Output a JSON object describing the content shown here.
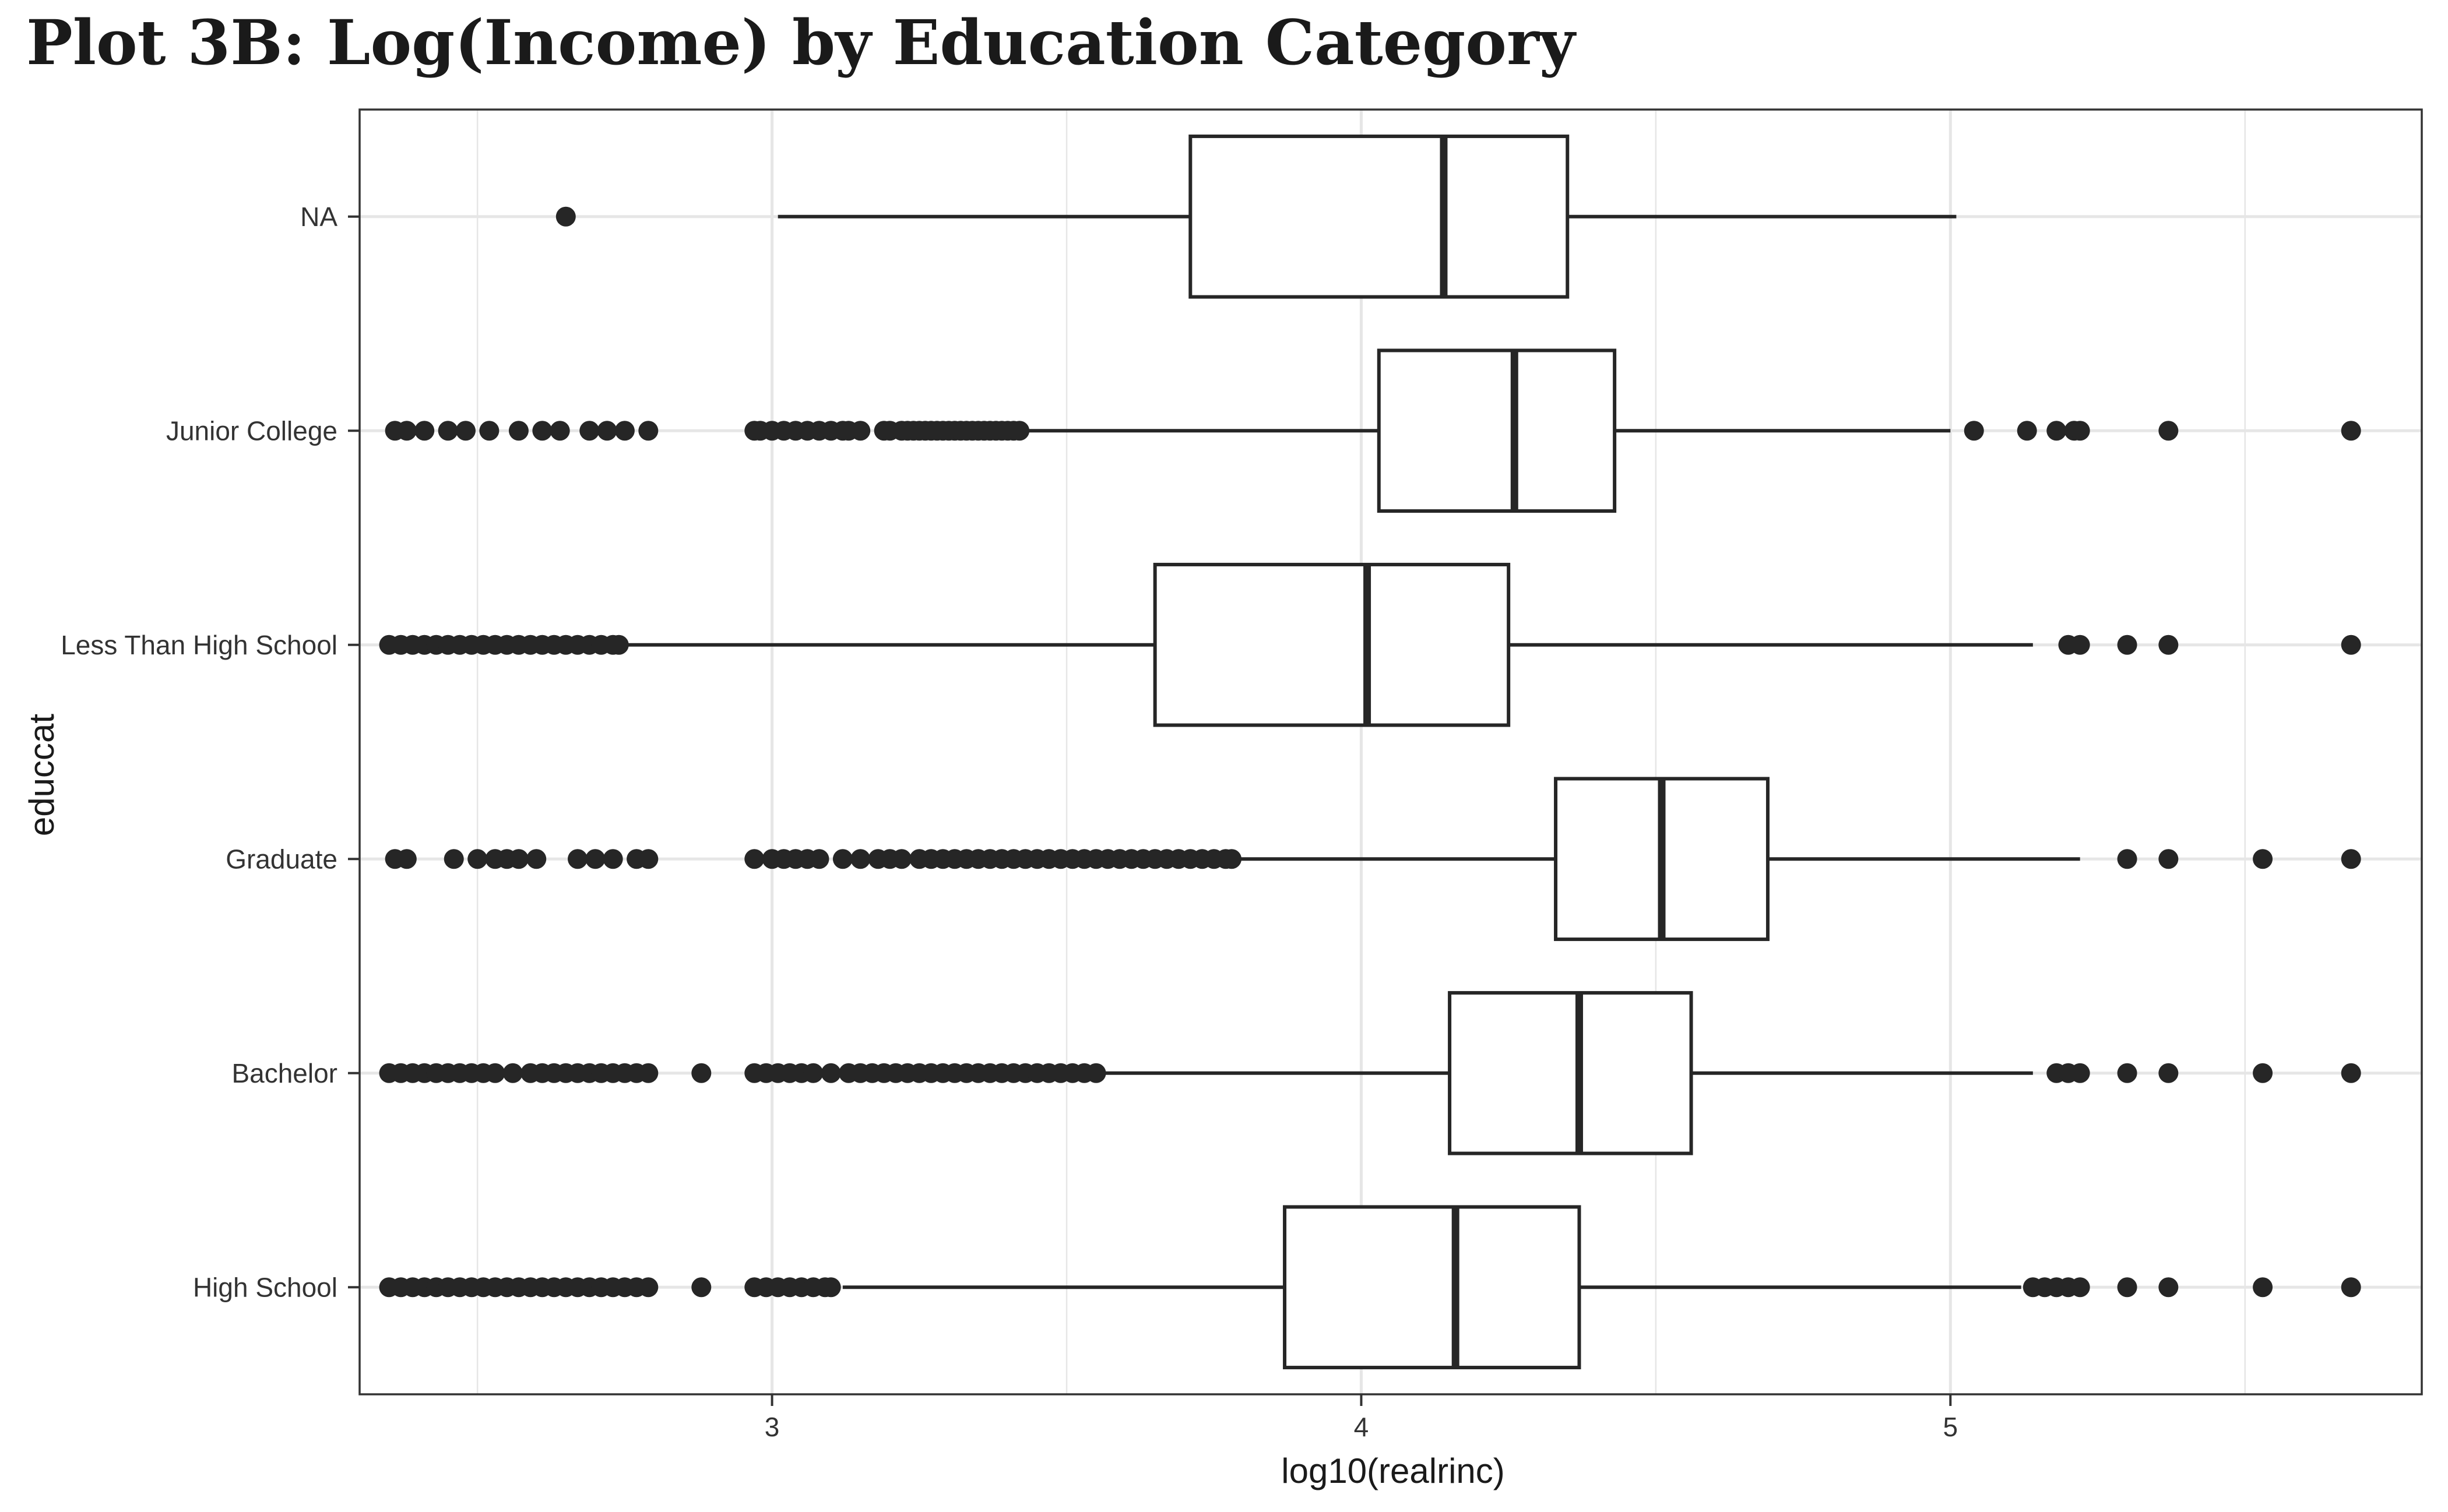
{
  "chart_data": {
    "type": "boxplot",
    "orientation": "horizontal",
    "title": "Plot 3B: Log(Income) by Education Category",
    "xlabel": "log10(realrinc)",
    "ylabel": "educcat",
    "xlim": [
      2.3,
      5.8
    ],
    "x_ticks": [
      3,
      4,
      5
    ],
    "grid": true,
    "colors": {
      "box_stroke": "#262626",
      "box_fill": "#ffffff",
      "outlier": "#262626",
      "grid": "#e6e6e6",
      "panel_border": "#333333"
    },
    "categories": [
      "NA",
      "Junior College",
      "Less Than High School",
      "Graduate",
      "Bachelor",
      "High School"
    ],
    "series": [
      {
        "category": "NA",
        "whisker_low": 3.01,
        "q1": 3.71,
        "median": 4.14,
        "q3": 4.35,
        "whisker_high": 5.01,
        "outliers": [
          2.65
        ]
      },
      {
        "category": "Junior College",
        "whisker_low": 3.43,
        "q1": 4.03,
        "median": 4.26,
        "q3": 4.43,
        "whisker_high": 5.0,
        "outliers": [
          2.36,
          2.38,
          2.41,
          2.45,
          2.48,
          2.52,
          2.57,
          2.61,
          2.64,
          2.69,
          2.72,
          2.75,
          2.79,
          2.97,
          2.98,
          3.0,
          3.02,
          3.04,
          3.06,
          3.08,
          3.1,
          3.12,
          3.13,
          3.15,
          3.19,
          3.2,
          3.22,
          3.23,
          3.24,
          3.25,
          3.26,
          3.27,
          3.28,
          3.29,
          3.3,
          3.31,
          3.32,
          3.33,
          3.34,
          3.35,
          3.36,
          3.37,
          3.38,
          3.39,
          3.4,
          3.41,
          3.42,
          5.04,
          5.13,
          5.18,
          5.21,
          5.22,
          5.37,
          5.68
        ]
      },
      {
        "category": "Less Than High School",
        "whisker_low": 2.75,
        "q1": 3.65,
        "median": 4.01,
        "q3": 4.25,
        "whisker_high": 5.14,
        "outliers": [
          2.35,
          2.37,
          2.39,
          2.41,
          2.43,
          2.45,
          2.47,
          2.49,
          2.51,
          2.53,
          2.55,
          2.57,
          2.59,
          2.61,
          2.63,
          2.65,
          2.67,
          2.69,
          2.71,
          2.73,
          2.74,
          5.2,
          5.22,
          5.3,
          5.37,
          5.68
        ]
      },
      {
        "category": "Graduate",
        "whisker_low": 3.79,
        "q1": 4.33,
        "median": 4.51,
        "q3": 4.69,
        "whisker_high": 5.22,
        "outliers": [
          2.36,
          2.38,
          2.46,
          2.5,
          2.53,
          2.55,
          2.57,
          2.6,
          2.67,
          2.7,
          2.73,
          2.77,
          2.79,
          2.97,
          3.0,
          3.02,
          3.04,
          3.06,
          3.08,
          3.12,
          3.15,
          3.18,
          3.2,
          3.22,
          3.25,
          3.27,
          3.29,
          3.31,
          3.33,
          3.35,
          3.37,
          3.39,
          3.41,
          3.43,
          3.45,
          3.47,
          3.49,
          3.51,
          3.53,
          3.55,
          3.57,
          3.59,
          3.61,
          3.63,
          3.65,
          3.67,
          3.69,
          3.71,
          3.73,
          3.75,
          3.77,
          3.78,
          5.3,
          5.37,
          5.53,
          5.68
        ]
      },
      {
        "category": "Bachelor",
        "whisker_low": 3.56,
        "q1": 4.15,
        "median": 4.37,
        "q3": 4.56,
        "whisker_high": 5.14,
        "outliers": [
          2.35,
          2.37,
          2.39,
          2.41,
          2.43,
          2.45,
          2.47,
          2.49,
          2.51,
          2.53,
          2.56,
          2.59,
          2.61,
          2.63,
          2.65,
          2.67,
          2.69,
          2.71,
          2.73,
          2.75,
          2.77,
          2.79,
          2.88,
          2.97,
          2.99,
          3.01,
          3.03,
          3.05,
          3.07,
          3.1,
          3.13,
          3.15,
          3.17,
          3.19,
          3.21,
          3.23,
          3.25,
          3.27,
          3.29,
          3.31,
          3.33,
          3.35,
          3.37,
          3.39,
          3.41,
          3.43,
          3.45,
          3.47,
          3.49,
          3.51,
          3.53,
          3.55,
          5.18,
          5.2,
          5.22,
          5.3,
          5.37,
          5.53,
          5.68
        ]
      },
      {
        "category": "High School",
        "whisker_low": 3.12,
        "q1": 3.87,
        "median": 4.16,
        "q3": 4.37,
        "whisker_high": 5.12,
        "outliers": [
          2.35,
          2.37,
          2.39,
          2.41,
          2.43,
          2.45,
          2.47,
          2.49,
          2.51,
          2.53,
          2.55,
          2.57,
          2.59,
          2.61,
          2.63,
          2.65,
          2.67,
          2.69,
          2.71,
          2.73,
          2.75,
          2.77,
          2.79,
          2.88,
          2.97,
          2.99,
          3.01,
          3.03,
          3.05,
          3.07,
          3.09,
          3.1,
          5.14,
          5.16,
          5.18,
          5.2,
          5.22,
          5.3,
          5.37,
          5.53,
          5.68
        ]
      }
    ]
  }
}
